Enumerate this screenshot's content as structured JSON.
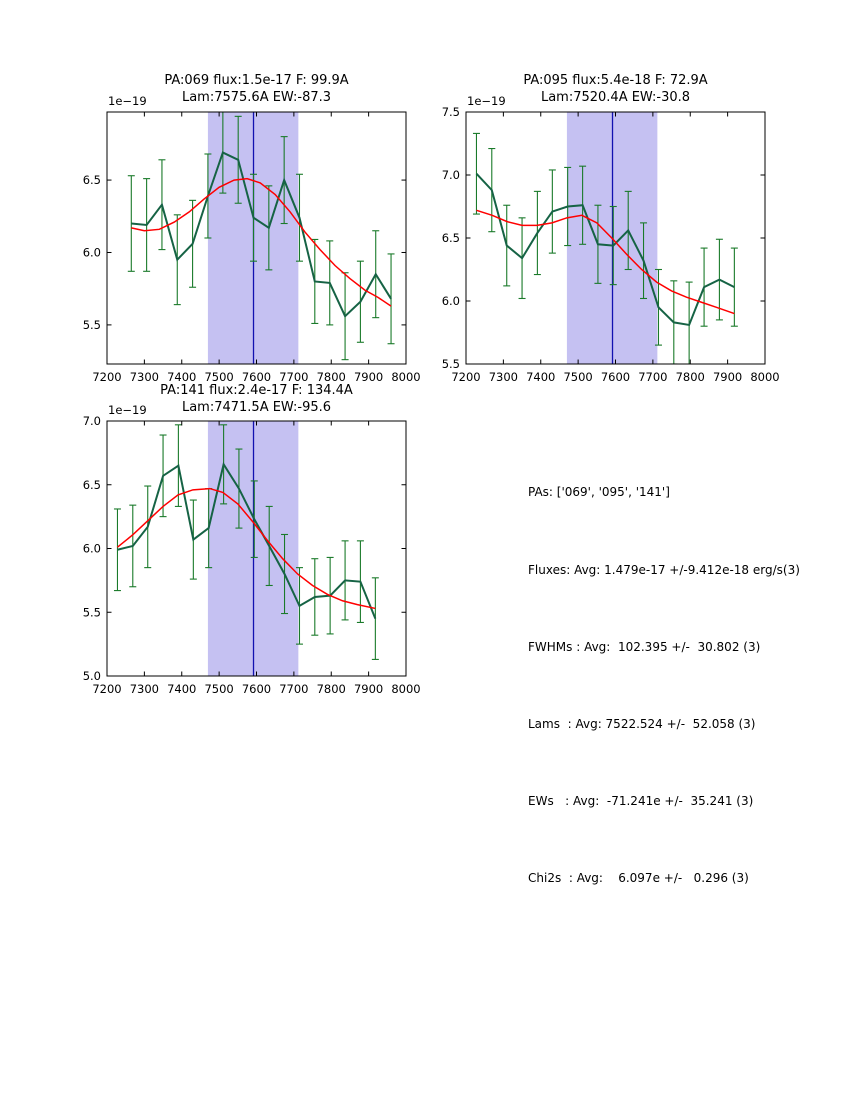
{
  "colors": {
    "background": "#ffffff",
    "axis": "#000000",
    "text": "#000000",
    "data_line": "#166345",
    "error_bar": "#1a7a2a",
    "model_line": "#ff0000",
    "band": "#c5c1f2",
    "vline": "#1212b0"
  },
  "info_panel": {
    "lines": [
      "PAs: ['069', '095', '141']",
      "Fluxes: Avg: 1.479e-17 +/-9.412e-18 erg/s(3)",
      "FWHMs : Avg:  102.395 +/-  30.802 (3)",
      "Lams  : Avg: 7522.524 +/-  52.058 (3)",
      "EWs   : Avg:  -71.241e +/-  35.241 (3)",
      "Chi2s  : Avg:    6.097e +/-   0.296 (3)"
    ]
  },
  "chart_data": [
    {
      "type": "line",
      "title_line1": "PA:069 flux:1.5e-17 F: 99.9A",
      "title_line2": "Lam:7575.6A EW:-87.3",
      "offset_label": "1e−19",
      "xlabel": "",
      "ylabel": "",
      "xlim": [
        7200,
        8000
      ],
      "ylim": [
        5.23,
        6.97
      ],
      "xticks": [
        7200,
        7300,
        7400,
        7500,
        7600,
        7700,
        7800,
        7900,
        8000
      ],
      "yticks": [
        5.5,
        6.0,
        6.5
      ],
      "band": [
        7470,
        7712
      ],
      "vline_x": 7592,
      "series_data": {
        "name": "spectrum",
        "x": [
          7265,
          7306,
          7347,
          7388,
          7429,
          7470,
          7510,
          7551,
          7592,
          7633,
          7674,
          7715,
          7756,
          7796,
          7837,
          7878,
          7919,
          7960
        ],
        "y": [
          6.2,
          6.19,
          6.33,
          5.95,
          6.06,
          6.39,
          6.69,
          6.64,
          6.24,
          6.17,
          6.5,
          6.24,
          5.8,
          5.79,
          5.56,
          5.66,
          5.85,
          5.68
        ],
        "yerr": [
          0.33,
          0.32,
          0.31,
          0.31,
          0.3,
          0.29,
          0.28,
          0.3,
          0.3,
          0.29,
          0.3,
          0.3,
          0.29,
          0.29,
          0.3,
          0.28,
          0.3,
          0.31
        ]
      },
      "series_model": {
        "name": "gaussian-fit",
        "x": [
          7265,
          7300,
          7340,
          7380,
          7420,
          7460,
          7500,
          7540,
          7575,
          7610,
          7650,
          7690,
          7730,
          7770,
          7810,
          7850,
          7890,
          7925,
          7960
        ],
        "y": [
          6.17,
          6.15,
          6.16,
          6.21,
          6.28,
          6.37,
          6.45,
          6.5,
          6.51,
          6.48,
          6.4,
          6.28,
          6.14,
          6.02,
          5.91,
          5.82,
          5.74,
          5.69,
          5.63
        ]
      }
    },
    {
      "type": "line",
      "title_line1": "PA:095 flux:5.4e-18 F: 72.9A",
      "title_line2": "Lam:7520.4A EW:-30.8",
      "offset_label": "1e−19",
      "xlabel": "",
      "ylabel": "",
      "xlim": [
        7200,
        8000
      ],
      "ylim": [
        5.5,
        7.5
      ],
      "xticks": [
        7200,
        7300,
        7400,
        7500,
        7600,
        7700,
        7800,
        7900,
        8000
      ],
      "yticks": [
        5.5,
        6.0,
        6.5,
        7.0,
        7.5
      ],
      "band": [
        7470,
        7712
      ],
      "vline_x": 7592,
      "series_data": {
        "name": "spectrum",
        "x": [
          7228,
          7269,
          7309,
          7350,
          7391,
          7431,
          7472,
          7512,
          7553,
          7594,
          7634,
          7675,
          7715,
          7756,
          7797,
          7837,
          7878,
          7918
        ],
        "y": [
          7.01,
          6.88,
          6.44,
          6.34,
          6.54,
          6.71,
          6.75,
          6.76,
          6.45,
          6.44,
          6.56,
          6.32,
          5.95,
          5.83,
          5.81,
          6.11,
          6.17,
          6.11
        ],
        "yerr": [
          0.32,
          0.33,
          0.32,
          0.32,
          0.33,
          0.33,
          0.31,
          0.31,
          0.31,
          0.31,
          0.31,
          0.3,
          0.3,
          0.33,
          0.34,
          0.31,
          0.32,
          0.31
        ]
      },
      "series_model": {
        "name": "gaussian-fit",
        "x": [
          7228,
          7270,
          7310,
          7350,
          7390,
          7430,
          7470,
          7510,
          7550,
          7590,
          7630,
          7670,
          7710,
          7750,
          7790,
          7830,
          7870,
          7918
        ],
        "y": [
          6.72,
          6.68,
          6.63,
          6.6,
          6.6,
          6.62,
          6.66,
          6.68,
          6.62,
          6.5,
          6.37,
          6.25,
          6.15,
          6.08,
          6.03,
          5.99,
          5.95,
          5.9
        ]
      }
    },
    {
      "type": "line",
      "title_line1": "PA:141 flux:2.4e-17 F: 134.4A",
      "title_line2": "Lam:7471.5A EW:-95.6",
      "offset_label": "1e−19",
      "xlabel": "",
      "ylabel": "",
      "xlim": [
        7200,
        8000
      ],
      "ylim": [
        5.0,
        7.0
      ],
      "xticks": [
        7200,
        7300,
        7400,
        7500,
        7600,
        7700,
        7800,
        7900,
        8000
      ],
      "yticks": [
        5.0,
        5.5,
        6.0,
        6.5,
        7.0
      ],
      "band": [
        7470,
        7712
      ],
      "vline_x": 7592,
      "series_data": {
        "name": "spectrum",
        "x": [
          7228,
          7269,
          7309,
          7350,
          7391,
          7431,
          7472,
          7512,
          7553,
          7594,
          7634,
          7675,
          7715,
          7756,
          7797,
          7837,
          7878,
          7918
        ],
        "y": [
          5.99,
          6.02,
          6.17,
          6.57,
          6.65,
          6.07,
          6.16,
          6.66,
          6.47,
          6.23,
          6.02,
          5.8,
          5.55,
          5.62,
          5.63,
          5.75,
          5.74,
          5.45
        ],
        "yerr": [
          0.32,
          0.32,
          0.32,
          0.32,
          0.32,
          0.31,
          0.31,
          0.31,
          0.31,
          0.3,
          0.31,
          0.31,
          0.3,
          0.3,
          0.3,
          0.31,
          0.32,
          0.32
        ]
      },
      "series_model": {
        "name": "gaussian-fit",
        "x": [
          7228,
          7270,
          7310,
          7350,
          7390,
          7430,
          7475,
          7510,
          7550,
          7590,
          7630,
          7670,
          7710,
          7750,
          7790,
          7830,
          7870,
          7918
        ],
        "y": [
          6.01,
          6.11,
          6.22,
          6.33,
          6.42,
          6.46,
          6.47,
          6.44,
          6.35,
          6.21,
          6.06,
          5.92,
          5.8,
          5.71,
          5.64,
          5.59,
          5.56,
          5.53
        ]
      }
    }
  ]
}
